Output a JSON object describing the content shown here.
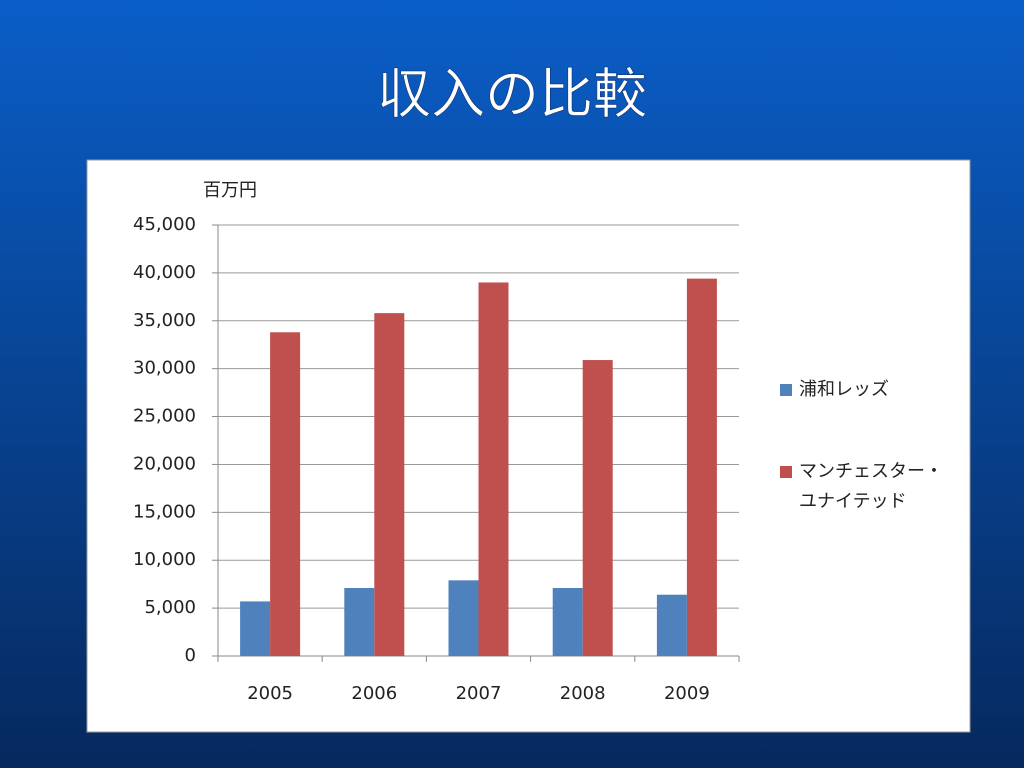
{
  "chart_data": {
    "type": "bar",
    "title": "収入の比較",
    "y_label": "百万円",
    "categories": [
      "2005",
      "2006",
      "2007",
      "2008",
      "2009"
    ],
    "series": [
      {
        "name": "浦和レッズ",
        "color": "#4f81bd",
        "values": [
          5700,
          7100,
          7900,
          7100,
          6400
        ]
      },
      {
        "name": "マンチェスター・ユナイテッド",
        "color": "#c0504d",
        "values": [
          33800,
          35800,
          39000,
          30900,
          39400
        ]
      }
    ],
    "ylim": [
      0,
      45000
    ],
    "yticks": [
      0,
      {
        "value": 5000,
        "label": "5,000"
      },
      {
        "value": 10000,
        "label": "10,000"
      },
      {
        "value": 15000,
        "label": "15,000"
      },
      {
        "value": 20000,
        "label": "20,000"
      },
      {
        "value": 25000,
        "label": "25,000"
      },
      {
        "value": 30000,
        "label": "30,000"
      },
      {
        "value": 35000,
        "label": "35,000"
      },
      {
        "value": 40000,
        "label": "40,000"
      },
      {
        "value": 45000,
        "label": "45,000"
      }
    ],
    "grid": true,
    "legend": "right"
  }
}
